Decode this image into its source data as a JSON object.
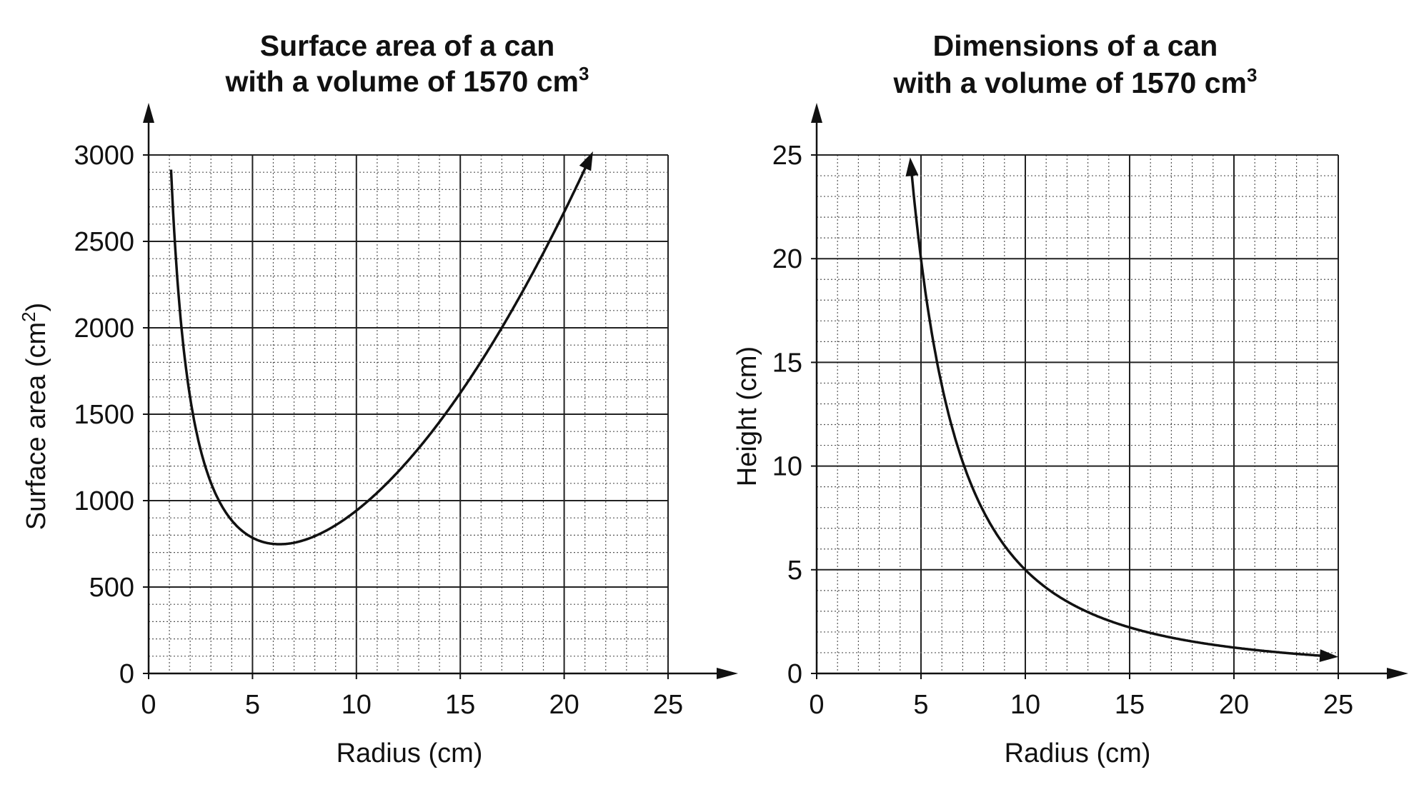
{
  "chart_data": [
    {
      "type": "line",
      "title_line1": "Surface area of a can",
      "title_line2": "with a volume of 1570 cm",
      "title_sup": "3",
      "xlabel": "Radius (cm)",
      "ylabel_text": "Surface area (cm",
      "ylabel_sup": "2",
      "ylabel_close": ")",
      "xlim": [
        0,
        25
      ],
      "ylim": [
        0,
        3000
      ],
      "x_ticks": [
        "0",
        "5",
        "10",
        "15",
        "20",
        "25"
      ],
      "y_ticks": [
        "0",
        "500",
        "1000",
        "1500",
        "2000",
        "2500",
        "3000"
      ],
      "grid": true,
      "minor_grid": "dotted",
      "series": [
        {
          "name": "Surface area",
          "formula": "2*pi*r^2 + 3140/r",
          "x_range": [
            1.08,
            21.3
          ],
          "end_arrow": true
        }
      ]
    },
    {
      "type": "line",
      "title_line1": "Dimensions of a can",
      "title_line2": "with a volume of 1570 cm",
      "title_sup": "3",
      "xlabel": "Radius (cm)",
      "ylabel_text": "Height (cm)",
      "ylabel_sup": "",
      "ylabel_close": "",
      "xlim": [
        0,
        25
      ],
      "ylim": [
        0,
        25
      ],
      "x_ticks": [
        "0",
        "5",
        "10",
        "15",
        "20",
        "25"
      ],
      "y_ticks": [
        "0",
        "5",
        "10",
        "15",
        "20",
        "25"
      ],
      "grid": true,
      "minor_grid": "dotted",
      "series": [
        {
          "name": "Height",
          "formula": "1570/(pi*r^2)",
          "x_range": [
            4.5,
            24.8
          ],
          "start_arrow": true,
          "end_arrow": true
        }
      ]
    }
  ]
}
